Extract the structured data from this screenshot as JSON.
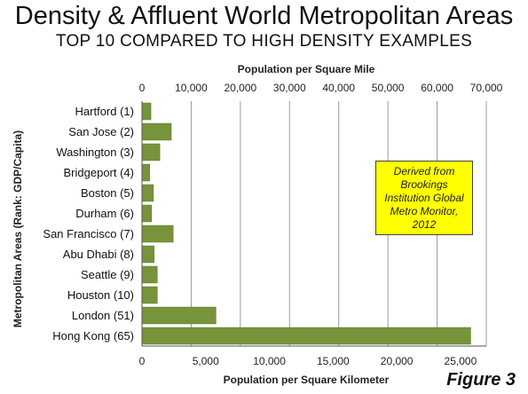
{
  "title": "Density & Affluent World Metropolitan Areas",
  "subtitle": "TOP 10 COMPARED TO HIGH DENSITY EXAMPLES",
  "note": "Derived from Brookings Institution Global Metro Monitor, 2012",
  "figure_label": "Figure 3",
  "chart_data": {
    "type": "bar",
    "orientation": "horizontal",
    "categories": [
      "Hartford (1)",
      "San Jose (2)",
      "Washington (3)",
      "Bridgeport (4)",
      "Boston (5)",
      "Durham (6)",
      "San Francisco (7)",
      "Abu Dhabi (8)",
      "Seattle (9)",
      "Houston (10)",
      "London (51)",
      "Hong Kong (65)"
    ],
    "series": [
      {
        "values": [
          700,
          2300,
          1400,
          600,
          900,
          750,
          2450,
          950,
          1200,
          1200,
          5800,
          25800
        ],
        "color": "#77933c"
      }
    ],
    "xlabel": "Population per Square Kilometer",
    "xlim": [
      0,
      27027
    ],
    "xticks": [
      "0",
      "5,000",
      "10,000",
      "15,000",
      "20,000",
      "25,000"
    ],
    "x2label": "Population per Square Mile",
    "x2lim": [
      0,
      70000
    ],
    "x2ticks": [
      "0",
      "10,000",
      "20,000",
      "30,000",
      "40,000",
      "50,000",
      "60,000",
      "70,000"
    ],
    "ylabel": "Metropolitan Areas (Rank: GDP/Capita)",
    "grid": true,
    "legend": "none"
  }
}
